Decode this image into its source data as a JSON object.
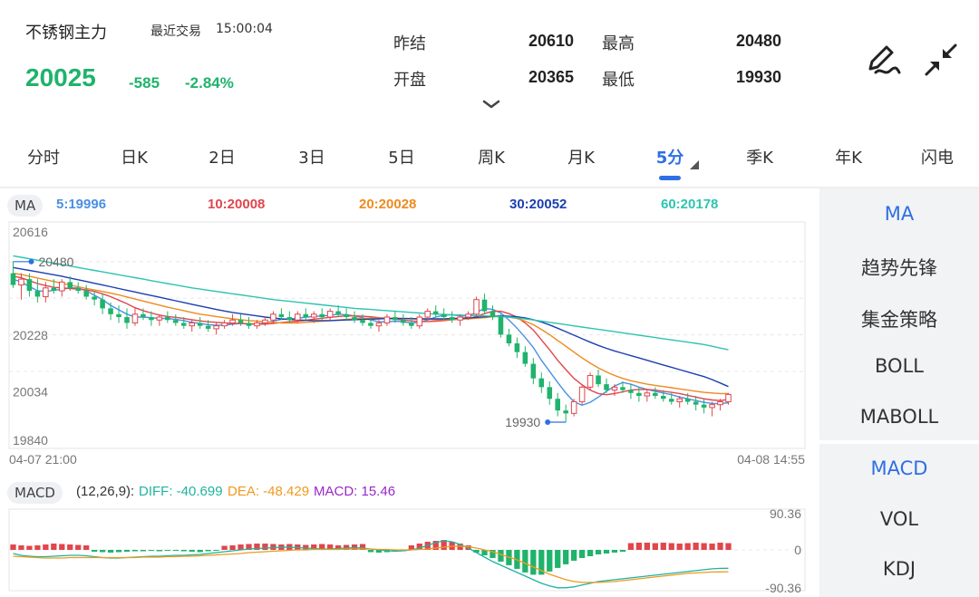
{
  "header": {
    "instrument": "不锈钢主力",
    "trade_label": "最近交易",
    "trade_time": "15:00:04",
    "last_price": "20025",
    "change": "-585",
    "change_pct": "-2.84%",
    "stats": {
      "prev_settle_label": "昨结",
      "prev_settle": "20610",
      "open_label": "开盘",
      "open": "20365",
      "high_label": "最高",
      "high": "20480",
      "low_label": "最低",
      "low": "19930"
    },
    "up_color": "#e0464c",
    "down_color": "#1fb36b"
  },
  "tabs": {
    "items": [
      "分时",
      "日K",
      "2日",
      "3日",
      "5日",
      "周K",
      "月K",
      "5分",
      "季K",
      "年K",
      "闪电"
    ],
    "active": "5分"
  },
  "side_panel": {
    "main_items": [
      "MA",
      "趋势先锋",
      "集金策略",
      "BOLL",
      "MABOLL"
    ],
    "sub_items": [
      "MACD",
      "VOL",
      "KDJ"
    ],
    "active_main": "MA",
    "active_sub": "MACD",
    "active_color": "#2f6fe3"
  },
  "ma_legend": {
    "tag": "MA",
    "items": [
      {
        "text": "5:19996",
        "color": "#4a90e2"
      },
      {
        "text": "10:20008",
        "color": "#e0464c"
      },
      {
        "text": "20:20028",
        "color": "#ef8a1e"
      },
      {
        "text": "30:20052",
        "color": "#1b3fb0"
      },
      {
        "text": "60:20178",
        "color": "#2ec4b0"
      }
    ]
  },
  "macd_legend": {
    "tag": "MACD",
    "params": "(12,26,9):",
    "diff": "DIFF: -40.699",
    "dea": "DEA: -48.429",
    "macd": "MACD: 15.46",
    "diff_color": "#1fb3a0",
    "dea_color": "#ef9a1e",
    "macd_color": "#9b27c8"
  },
  "chart_data": {
    "type": "candlestick",
    "price_axis": {
      "ticks": [
        "20616",
        "20228",
        "20034",
        "19840"
      ],
      "ylim": [
        19840,
        20616
      ]
    },
    "x_start_label": "04-07 21:00",
    "x_end_label": "04-08 14:55",
    "max_marker": {
      "label": "20480",
      "value": 20480
    },
    "min_marker": {
      "label": "19930",
      "value": 19930
    },
    "candles_ohlc": [
      [
        20440,
        20480,
        20390,
        20400
      ],
      [
        20400,
        20440,
        20350,
        20420
      ],
      [
        20420,
        20440,
        20360,
        20380
      ],
      [
        20380,
        20420,
        20340,
        20360
      ],
      [
        20360,
        20410,
        20340,
        20390
      ],
      [
        20390,
        20420,
        20370,
        20380
      ],
      [
        20380,
        20420,
        20360,
        20410
      ],
      [
        20410,
        20430,
        20380,
        20390
      ],
      [
        20390,
        20410,
        20370,
        20380
      ],
      [
        20380,
        20400,
        20350,
        20360
      ],
      [
        20360,
        20380,
        20330,
        20350
      ],
      [
        20350,
        20370,
        20300,
        20320
      ],
      [
        20320,
        20340,
        20280,
        20300
      ],
      [
        20300,
        20330,
        20270,
        20290
      ],
      [
        20290,
        20320,
        20250,
        20270
      ],
      [
        20270,
        20320,
        20260,
        20300
      ],
      [
        20300,
        20320,
        20280,
        20290
      ],
      [
        20290,
        20310,
        20260,
        20280
      ],
      [
        20280,
        20300,
        20260,
        20290
      ],
      [
        20290,
        20310,
        20270,
        20280
      ],
      [
        20280,
        20300,
        20260,
        20270
      ],
      [
        20270,
        20290,
        20250,
        20260
      ],
      [
        20260,
        20280,
        20240,
        20270
      ],
      [
        20270,
        20290,
        20250,
        20260
      ],
      [
        20260,
        20280,
        20240,
        20250
      ],
      [
        20250,
        20270,
        20230,
        20260
      ],
      [
        20260,
        20280,
        20250,
        20270
      ],
      [
        20270,
        20300,
        20260,
        20280
      ],
      [
        20280,
        20300,
        20260,
        20270
      ],
      [
        20270,
        20290,
        20250,
        20260
      ],
      [
        20260,
        20280,
        20250,
        20270
      ],
      [
        20270,
        20290,
        20260,
        20280
      ],
      [
        20280,
        20310,
        20270,
        20300
      ],
      [
        20300,
        20320,
        20280,
        20290
      ],
      [
        20290,
        20310,
        20270,
        20280
      ],
      [
        20280,
        20310,
        20270,
        20300
      ],
      [
        20300,
        20320,
        20280,
        20290
      ],
      [
        20290,
        20310,
        20270,
        20300
      ],
      [
        20300,
        20320,
        20280,
        20290
      ],
      [
        20290,
        20320,
        20280,
        20310
      ],
      [
        20310,
        20330,
        20290,
        20300
      ],
      [
        20300,
        20320,
        20280,
        20290
      ],
      [
        20290,
        20310,
        20270,
        20280
      ],
      [
        20280,
        20300,
        20260,
        20270
      ],
      [
        20270,
        20290,
        20250,
        20260
      ],
      [
        20260,
        20280,
        20240,
        20270
      ],
      [
        20270,
        20300,
        20260,
        20290
      ],
      [
        20290,
        20310,
        20270,
        20280
      ],
      [
        20280,
        20300,
        20260,
        20270
      ],
      [
        20270,
        20290,
        20250,
        20260
      ],
      [
        20260,
        20300,
        20250,
        20290
      ],
      [
        20290,
        20320,
        20280,
        20310
      ],
      [
        20310,
        20330,
        20290,
        20300
      ],
      [
        20300,
        20320,
        20280,
        20290
      ],
      [
        20290,
        20310,
        20270,
        20280
      ],
      [
        20280,
        20300,
        20260,
        20290
      ],
      [
        20290,
        20310,
        20280,
        20300
      ],
      [
        20300,
        20360,
        20290,
        20350
      ],
      [
        20350,
        20370,
        20300,
        20310
      ],
      [
        20310,
        20330,
        20280,
        20290
      ],
      [
        20290,
        20300,
        20220,
        20230
      ],
      [
        20230,
        20250,
        20190,
        20200
      ],
      [
        20200,
        20220,
        20150,
        20170
      ],
      [
        20170,
        20190,
        20120,
        20130
      ],
      [
        20130,
        20150,
        20060,
        20080
      ],
      [
        20080,
        20100,
        20030,
        20050
      ],
      [
        20050,
        20070,
        19990,
        20010
      ],
      [
        20010,
        20030,
        19950,
        19970
      ],
      [
        19970,
        19990,
        19930,
        19960
      ],
      [
        19960,
        20010,
        19950,
        20000
      ],
      [
        20000,
        20060,
        19990,
        20050
      ],
      [
        20050,
        20100,
        20040,
        20090
      ],
      [
        20090,
        20110,
        20050,
        20060
      ],
      [
        20060,
        20080,
        20030,
        20040
      ],
      [
        20040,
        20060,
        20020,
        20050
      ],
      [
        20050,
        20070,
        20030,
        20040
      ],
      [
        20040,
        20060,
        20010,
        20030
      ],
      [
        20030,
        20050,
        20000,
        20020
      ],
      [
        20020,
        20040,
        20000,
        20030
      ],
      [
        20030,
        20050,
        20010,
        20020
      ],
      [
        20020,
        20040,
        20000,
        20010
      ],
      [
        20010,
        20030,
        19990,
        20000
      ],
      [
        20000,
        20020,
        19980,
        20010
      ],
      [
        20010,
        20030,
        19990,
        20000
      ],
      [
        20000,
        20020,
        19970,
        19990
      ],
      [
        19990,
        20010,
        19960,
        19980
      ],
      [
        19980,
        20000,
        19950,
        19990
      ],
      [
        19990,
        20010,
        19970,
        20000
      ],
      [
        20000,
        20030,
        19990,
        20025
      ]
    ],
    "series": [
      {
        "name": "5",
        "color": "#4a90e2",
        "y": [
          20420,
          20410,
          20395,
          20380,
          20378,
          20382,
          20385,
          20390,
          20390,
          20380,
          20365,
          20350,
          20330,
          20315,
          20300,
          20290,
          20290,
          20288,
          20285,
          20285,
          20282,
          20278,
          20272,
          20268,
          20264,
          20262,
          20262,
          20266,
          20268,
          20266,
          20266,
          20270,
          20276,
          20282,
          20284,
          20286,
          20290,
          20292,
          20294,
          20296,
          20300,
          20298,
          20294,
          20288,
          20280,
          20274,
          20274,
          20276,
          20274,
          20270,
          20272,
          20280,
          20290,
          20296,
          20298,
          20294,
          20294,
          20306,
          20320,
          20316,
          20304,
          20280,
          20252,
          20220,
          20186,
          20142,
          20104,
          20066,
          20030,
          20000,
          19988,
          19998,
          20016,
          20036,
          20054,
          20066,
          20060,
          20050,
          20042,
          20036,
          20030,
          20024,
          20016,
          20010,
          20004,
          19998,
          19994,
          19994,
          19996
        ]
      },
      {
        "name": "10",
        "color": "#e0464c",
        "y": [
          20430,
          20425,
          20415,
          20405,
          20398,
          20392,
          20390,
          20388,
          20386,
          20383,
          20378,
          20370,
          20360,
          20348,
          20336,
          20322,
          20312,
          20304,
          20297,
          20292,
          20289,
          20285,
          20281,
          20277,
          20274,
          20272,
          20270,
          20269,
          20268,
          20267,
          20266,
          20266,
          20268,
          20271,
          20274,
          20276,
          20279,
          20283,
          20286,
          20289,
          20292,
          20294,
          20294,
          20293,
          20291,
          20288,
          20286,
          20283,
          20280,
          20277,
          20275,
          20275,
          20276,
          20278,
          20281,
          20283,
          20285,
          20292,
          20302,
          20310,
          20310,
          20302,
          20290,
          20270,
          20246,
          20212,
          20178,
          20142,
          20110,
          20080,
          20058,
          20040,
          20028,
          20024,
          20028,
          20034,
          20040,
          20042,
          20042,
          20040,
          20036,
          20032,
          20028,
          20022,
          20016,
          20010,
          20006,
          20004,
          20008
        ]
      },
      {
        "name": "20",
        "color": "#ef8a1e",
        "y": [
          20440,
          20436,
          20430,
          20424,
          20418,
          20412,
          20406,
          20400,
          20394,
          20388,
          20383,
          20378,
          20372,
          20366,
          20359,
          20352,
          20345,
          20338,
          20331,
          20324,
          20318,
          20312,
          20306,
          20300,
          20296,
          20292,
          20288,
          20284,
          20281,
          20278,
          20276,
          20274,
          20272,
          20270,
          20270,
          20270,
          20272,
          20274,
          20276,
          20278,
          20280,
          20282,
          20284,
          20286,
          20286,
          20286,
          20286,
          20286,
          20285,
          20284,
          20283,
          20282,
          20281,
          20281,
          20282,
          20283,
          20284,
          20286,
          20288,
          20291,
          20292,
          20290,
          20285,
          20276,
          20264,
          20248,
          20230,
          20210,
          20190,
          20170,
          20150,
          20132,
          20116,
          20102,
          20090,
          20080,
          20072,
          20066,
          20060,
          20056,
          20052,
          20048,
          20044,
          20040,
          20036,
          20032,
          20030,
          20028,
          20028
        ]
      },
      {
        "name": "30",
        "color": "#1b3fb0",
        "y": [
          20460,
          20455,
          20450,
          20445,
          20440,
          20435,
          20430,
          20424,
          20418,
          20412,
          20406,
          20400,
          20394,
          20388,
          20382,
          20376,
          20370,
          20364,
          20358,
          20352,
          20346,
          20340,
          20334,
          20328,
          20322,
          20316,
          20311,
          20306,
          20302,
          20298,
          20294,
          20290,
          20287,
          20284,
          20282,
          20280,
          20279,
          20278,
          20278,
          20278,
          20279,
          20280,
          20281,
          20282,
          20283,
          20284,
          20285,
          20285,
          20285,
          20285,
          20284,
          20284,
          20284,
          20284,
          20285,
          20286,
          20287,
          20289,
          20291,
          20293,
          20294,
          20293,
          20291,
          20287,
          20281,
          20273,
          20263,
          20252,
          20240,
          20228,
          20216,
          20204,
          20193,
          20183,
          20174,
          20166,
          20158,
          20150,
          20142,
          20134,
          20126,
          20118,
          20110,
          20102,
          20094,
          20086,
          20076,
          20064,
          20052
        ]
      },
      {
        "name": "60",
        "color": "#2ec4b0",
        "y": [
          20500,
          20495,
          20490,
          20485,
          20480,
          20475,
          20470,
          20465,
          20460,
          20455,
          20450,
          20445,
          20440,
          20435,
          20430,
          20425,
          20420,
          20415,
          20410,
          20405,
          20400,
          20395,
          20390,
          20386,
          20382,
          20378,
          20374,
          20370,
          20366,
          20362,
          20358,
          20354,
          20350,
          20347,
          20344,
          20341,
          20338,
          20335,
          20332,
          20329,
          20326,
          20323,
          20320,
          20318,
          20316,
          20314,
          20312,
          20310,
          20308,
          20306,
          20304,
          20302,
          20300,
          20299,
          20298,
          20297,
          20296,
          20295,
          20294,
          20293,
          20292,
          20290,
          20287,
          20284,
          20280,
          20276,
          20272,
          20268,
          20264,
          20260,
          20256,
          20252,
          20248,
          20244,
          20240,
          20236,
          20232,
          20228,
          20224,
          20220,
          20216,
          20212,
          20208,
          20204,
          20200,
          20196,
          20190,
          20184,
          20178
        ]
      }
    ],
    "macd_axis": {
      "ticks": [
        "90.36",
        "0",
        "-90.36"
      ],
      "ylim": [
        -90.36,
        90.36
      ]
    },
    "macd_hist": [
      12,
      10,
      9,
      10,
      12,
      14,
      13,
      12,
      11,
      10,
      -4,
      -5,
      -6,
      -5,
      -4,
      -3,
      -3,
      -2,
      -3,
      -2,
      -2,
      -3,
      -4,
      -5,
      -3,
      -2,
      9,
      10,
      12,
      13,
      14,
      14,
      13,
      12,
      13,
      12,
      11,
      12,
      13,
      12,
      10,
      11,
      12,
      13,
      -5,
      -6,
      -5,
      -4,
      -3,
      10,
      14,
      18,
      20,
      22,
      18,
      14,
      10,
      -6,
      -12,
      -18,
      -26,
      -34,
      -42,
      -50,
      -55,
      -55,
      -48,
      -40,
      -32,
      -24,
      -18,
      -14,
      -10,
      -8,
      -6,
      -4,
      15,
      16,
      16,
      15,
      16,
      15,
      14,
      15,
      16,
      15,
      14,
      16,
      15
    ],
    "diff_line": [
      -8,
      -12,
      -14,
      -15,
      -15,
      -14,
      -13,
      -12,
      -12,
      -13,
      -15,
      -17,
      -18,
      -18,
      -17,
      -16,
      -15,
      -14,
      -14,
      -13,
      -12,
      -12,
      -11,
      -10,
      -8,
      -6,
      -4,
      -2,
      0,
      2,
      3,
      4,
      5,
      6,
      6,
      5,
      4,
      3,
      2,
      2,
      3,
      4,
      5,
      4,
      2,
      0,
      -2,
      -3,
      -2,
      0,
      4,
      10,
      16,
      20,
      18,
      12,
      4,
      -6,
      -16,
      -26,
      -34,
      -42,
      -50,
      -58,
      -66,
      -74,
      -80,
      -84,
      -84,
      -82,
      -78,
      -74,
      -70,
      -68,
      -66,
      -64,
      -62,
      -60,
      -58,
      -56,
      -54,
      -52,
      -50,
      -48,
      -46,
      -44,
      -42,
      -41,
      -40.699
    ],
    "dea_line": [
      -14,
      -15,
      -16,
      -17,
      -18,
      -18,
      -18,
      -17,
      -17,
      -17,
      -17,
      -17,
      -17,
      -17,
      -17,
      -17,
      -16,
      -16,
      -16,
      -15,
      -15,
      -14,
      -14,
      -13,
      -12,
      -11,
      -10,
      -9,
      -8,
      -6,
      -5,
      -4,
      -3,
      -2,
      -1,
      0,
      0,
      1,
      1,
      1,
      1,
      2,
      2,
      2,
      2,
      1,
      1,
      0,
      0,
      0,
      1,
      2,
      4,
      6,
      8,
      8,
      7,
      4,
      0,
      -4,
      -10,
      -16,
      -22,
      -30,
      -38,
      -46,
      -54,
      -60,
      -66,
      -70,
      -72,
      -72,
      -72,
      -71,
      -70,
      -68,
      -66,
      -64,
      -62,
      -60,
      -58,
      -56,
      -54,
      -52,
      -51,
      -50,
      -49,
      -48.8,
      -48.429
    ]
  }
}
